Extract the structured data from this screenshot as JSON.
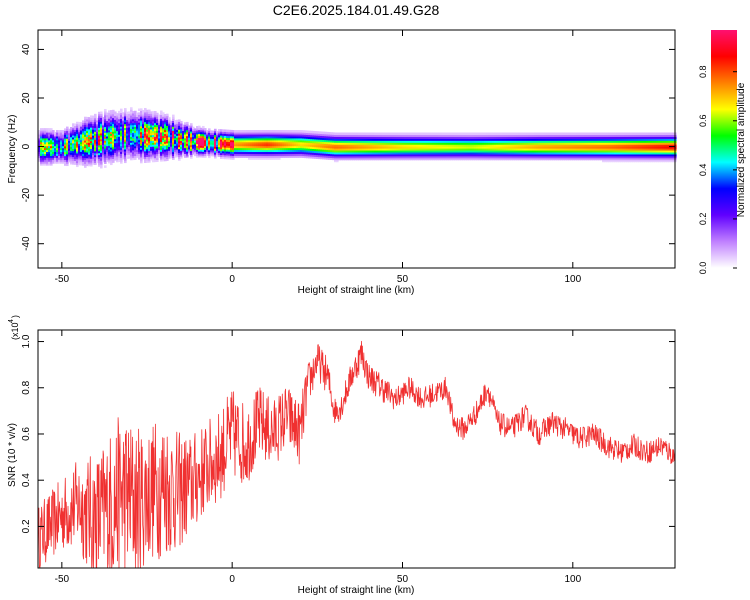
{
  "title": "C2E6.2025.184.01.49.G28",
  "chart_data": [
    {
      "type": "heatmap",
      "xlabel": "Height of straight line (km)",
      "ylabel": "Frequency (Hz)",
      "xlim": [
        -57,
        130
      ],
      "ylim": [
        -50,
        48
      ],
      "xticks": [
        -50,
        0,
        50,
        100
      ],
      "yticks": [
        -40,
        -20,
        0,
        20,
        40
      ],
      "colorbar": {
        "label": "Normalized spectral amplitude",
        "range": [
          0.0,
          0.97
        ],
        "ticks": [
          0.0,
          0.2,
          0.4,
          0.6,
          0.8
        ],
        "tick_labels": [
          "0.0",
          "0.2",
          "0.4",
          "0.6",
          "0.8"
        ],
        "colormap": [
          "#ffffff",
          "#c080ff",
          "#6000ff",
          "#0000ff",
          "#00ffff",
          "#00ff00",
          "#ffff00",
          "#ff8000",
          "#ff0000",
          "#ff1070"
        ]
      },
      "ridge": {
        "description_values": "frequency center of the signal band vs height",
        "x": [
          -57,
          -50,
          -40,
          -30,
          -20,
          -10,
          0,
          10,
          20,
          30,
          50,
          70,
          90,
          110,
          130
        ],
        "center_hz": [
          0,
          0,
          3,
          5,
          4,
          2,
          1,
          1,
          1,
          0,
          0,
          0,
          0,
          0,
          0
        ],
        "halfwidth_hz": [
          4,
          4,
          6,
          6,
          5,
          3,
          3,
          3,
          3,
          3,
          3,
          3,
          3,
          3,
          3
        ],
        "amplitude": [
          0.5,
          0.5,
          0.55,
          0.6,
          0.7,
          0.85,
          0.75,
          0.85,
          0.7,
          0.8,
          0.7,
          0.65,
          0.75,
          0.8,
          0.9
        ]
      }
    },
    {
      "type": "line",
      "xlabel": "Height of straight line (km)",
      "ylabel": "SNR (10 * v/v)",
      "yscale_label": "(x10",
      "yscale_exp": "4",
      "xlim": [
        -57,
        130
      ],
      "ylim": [
        0.02,
        1.05
      ],
      "xticks": [
        -50,
        0,
        50,
        100
      ],
      "yticks": [
        0.2,
        0.4,
        0.6,
        0.8,
        1.0
      ],
      "ytick_labels": [
        "0.2",
        "0.4",
        "0.6",
        "0.8",
        "1.0"
      ],
      "color": "#f03030",
      "series": [
        {
          "x": [
            -57,
            -50,
            -45,
            -40,
            -35,
            -32,
            -28,
            -24,
            -20,
            -16,
            -12,
            -8,
            -4,
            0,
            4,
            8,
            12,
            16,
            20,
            22,
            25,
            28,
            30,
            32,
            35,
            38,
            40,
            44,
            48,
            52,
            56,
            60,
            63,
            65,
            68,
            72,
            75,
            78,
            82,
            86,
            90,
            94,
            98,
            102,
            106,
            110,
            114,
            118,
            122,
            126,
            130
          ],
          "y": [
            0.15,
            0.25,
            0.3,
            0.22,
            0.3,
            0.35,
            0.3,
            0.35,
            0.38,
            0.35,
            0.38,
            0.45,
            0.5,
            0.6,
            0.55,
            0.65,
            0.6,
            0.68,
            0.6,
            0.8,
            0.92,
            0.85,
            0.7,
            0.72,
            0.85,
            0.95,
            0.85,
            0.8,
            0.75,
            0.8,
            0.75,
            0.78,
            0.8,
            0.65,
            0.62,
            0.7,
            0.8,
            0.65,
            0.62,
            0.68,
            0.6,
            0.65,
            0.62,
            0.58,
            0.6,
            0.55,
            0.52,
            0.55,
            0.52,
            0.55,
            0.5
          ],
          "noise_amplitude": [
            0.14,
            0.16,
            0.2,
            0.3,
            0.34,
            0.36,
            0.34,
            0.3,
            0.32,
            0.26,
            0.22,
            0.2,
            0.2,
            0.2,
            0.18,
            0.16,
            0.15,
            0.14,
            0.14,
            0.1,
            0.08,
            0.08,
            0.06,
            0.06,
            0.06,
            0.07,
            0.06,
            0.06,
            0.05,
            0.05,
            0.05,
            0.05,
            0.05,
            0.05,
            0.05,
            0.05,
            0.05,
            0.05,
            0.05,
            0.05,
            0.05,
            0.05,
            0.05,
            0.05,
            0.05,
            0.05,
            0.05,
            0.05,
            0.05,
            0.05,
            0.05
          ]
        }
      ]
    }
  ]
}
